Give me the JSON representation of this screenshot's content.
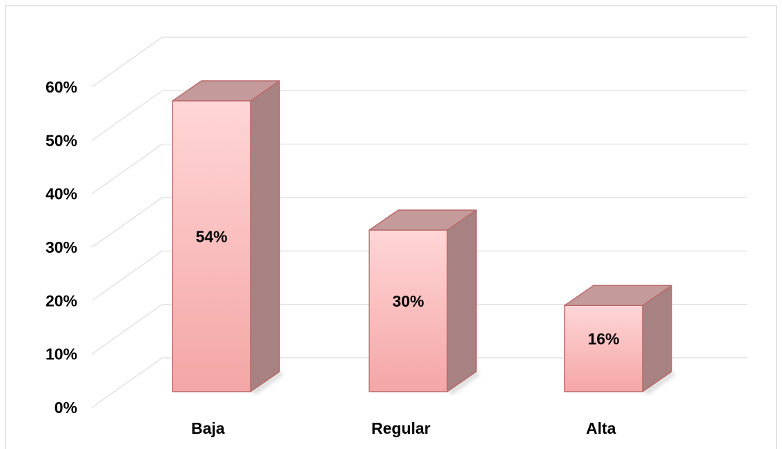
{
  "chart_data": {
    "type": "bar",
    "style": "3d-column",
    "categories": [
      "Baja",
      "Regular",
      "Alta"
    ],
    "values": [
      54,
      30,
      16
    ],
    "data_labels": [
      "54%",
      "30%",
      "16%"
    ],
    "y_ticks": [
      "0%",
      "10%",
      "20%",
      "30%",
      "40%",
      "50%",
      "60%"
    ],
    "ylim": [
      0,
      60
    ],
    "grid": true,
    "legend": "none",
    "colors": {
      "bar_front_top": "#ffd6d6",
      "bar_front_bottom": "#f4a6a6",
      "bar_side": "#a88282",
      "bar_top": "#c49a9a",
      "bar_edge": "#b86a6a",
      "gridline": "#dcdcdc",
      "frame": "#d9d9d9"
    }
  }
}
